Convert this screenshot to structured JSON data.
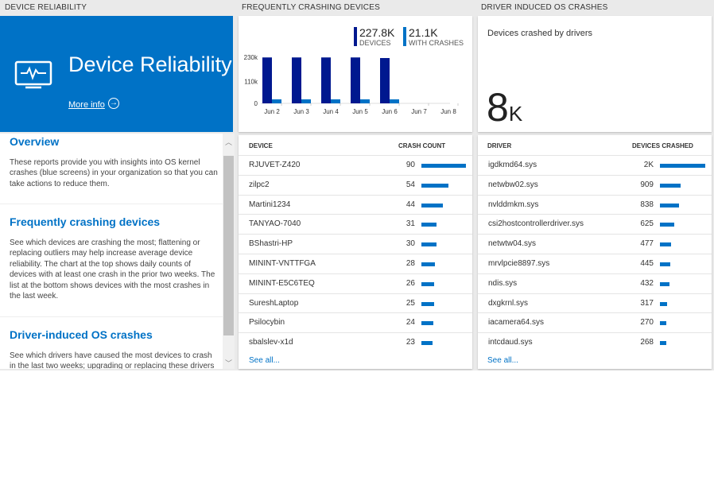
{
  "headers": {
    "left": "DEVICE RELIABILITY",
    "middle": "FREQUENTLY CRASHING DEVICES",
    "right": "DRIVER INDUCED OS CRASHES"
  },
  "hero": {
    "title": "Device Reliability",
    "link": "More info",
    "icon": "monitor-pulse-icon",
    "color": "#0072c6"
  },
  "info": [
    {
      "title": "Overview",
      "text": "These reports provide you with insights into OS kernel crashes (blue screens) in your organization so that you can take actions to reduce them."
    },
    {
      "title": "Frequently crashing devices",
      "text": "See which devices are crashing the most; flattening or replacing outliers may help increase average device reliability. The chart at the top shows daily counts of devices with at least one crash in the prior two weeks. The list at the bottom shows devices with the most crashes in the last week."
    },
    {
      "title": "Driver-induced OS crashes",
      "text": "See which drivers have caused the most devices to crash in the last two weeks; upgrading or replacing these drivers"
    }
  ],
  "summary": {
    "devices_value": "227.8K",
    "devices_label": "DEVICES",
    "crashes_value": "21.1K",
    "crashes_label": "WITH CRASHES"
  },
  "chart_data": {
    "type": "bar",
    "categories": [
      "Jun 2",
      "Jun 3",
      "Jun 4",
      "Jun 5",
      "Jun 6",
      "Jun 7",
      "Jun 8"
    ],
    "series": [
      {
        "name": "DEVICES",
        "color": "#00188f",
        "values": [
          229000,
          229000,
          229000,
          229000,
          226000,
          null,
          null
        ]
      },
      {
        "name": "WITH CRASHES",
        "color": "#0072c6",
        "values": [
          20000,
          20000,
          20000,
          20000,
          20000,
          null,
          null
        ]
      }
    ],
    "yticks": [
      "0",
      "110k",
      "230k"
    ],
    "ytick_values": [
      0,
      110000,
      230000
    ],
    "ylim": [
      0,
      230000
    ]
  },
  "devices": {
    "col1": "DEVICE",
    "col2": "CRASH COUNT",
    "see_all": "See all...",
    "rows": [
      {
        "name": "RJUVET-Z420",
        "value": 90
      },
      {
        "name": "zilpc2",
        "value": 54
      },
      {
        "name": "Martini1234",
        "value": 44
      },
      {
        "name": "TANYAO-7040",
        "value": 31
      },
      {
        "name": "BShastri-HP",
        "value": 30
      },
      {
        "name": "MININT-VNTTFGA",
        "value": 28
      },
      {
        "name": "MININT-E5C6TEQ",
        "value": 26
      },
      {
        "name": "SureshLaptop",
        "value": 25
      },
      {
        "name": "Psilocybin",
        "value": 24
      },
      {
        "name": "sbalslev-x1d",
        "value": 23
      }
    ]
  },
  "drivers_tile": {
    "label": "Devices crashed by drivers",
    "value": "8",
    "unit": "K"
  },
  "drivers": {
    "col1": "DRIVER",
    "col2": "DEVICES CRASHED",
    "see_all": "See all...",
    "rows": [
      {
        "name": "igdkmd64.sys",
        "value": "2K",
        "n": 2000
      },
      {
        "name": "netwbw02.sys",
        "value": "909",
        "n": 909
      },
      {
        "name": "nvlddmkm.sys",
        "value": "838",
        "n": 838
      },
      {
        "name": "csi2hostcontrollerdriver.sys",
        "value": "625",
        "n": 625
      },
      {
        "name": "netwtw04.sys",
        "value": "477",
        "n": 477
      },
      {
        "name": "mrvlpcie8897.sys",
        "value": "445",
        "n": 445
      },
      {
        "name": "ndis.sys",
        "value": "432",
        "n": 432
      },
      {
        "name": "dxgkrnl.sys",
        "value": "317",
        "n": 317
      },
      {
        "name": "iacamera64.sys",
        "value": "270",
        "n": 270
      },
      {
        "name": "intcdaud.sys",
        "value": "268",
        "n": 268
      }
    ]
  }
}
